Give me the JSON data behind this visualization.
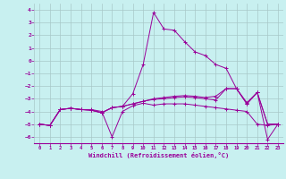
{
  "background_color": "#c8f0f0",
  "grid_color": "#a8c8c8",
  "line_color": "#990099",
  "xlabel": "Windchill (Refroidissement éolien,°C)",
  "xlim": [
    -0.5,
    23.5
  ],
  "ylim": [
    -6.5,
    4.5
  ],
  "yticks": [
    -6,
    -5,
    -4,
    -3,
    -2,
    -1,
    0,
    1,
    2,
    3,
    4
  ],
  "xticks": [
    0,
    1,
    2,
    3,
    4,
    5,
    6,
    7,
    8,
    9,
    10,
    11,
    12,
    13,
    14,
    15,
    16,
    17,
    18,
    19,
    20,
    21,
    22,
    23
  ],
  "lines": [
    {
      "x": [
        0,
        1,
        2,
        3,
        4,
        5,
        6,
        7,
        8,
        9,
        10,
        11,
        12,
        13,
        14,
        15,
        16,
        17,
        18,
        19,
        20,
        21,
        22,
        23
      ],
      "y": [
        -5.0,
        -5.1,
        -3.85,
        -3.75,
        -3.85,
        -3.85,
        -4.0,
        -6.0,
        -4.0,
        -3.55,
        -3.35,
        -3.5,
        -3.4,
        -3.4,
        -3.4,
        -3.5,
        -3.6,
        -3.7,
        -3.8,
        -3.9,
        -4.0,
        -5.0,
        -5.1,
        -5.0
      ]
    },
    {
      "x": [
        0,
        1,
        2,
        3,
        4,
        5,
        6,
        7,
        8,
        9,
        10,
        11,
        12,
        13,
        14,
        15,
        16,
        17,
        18,
        19,
        20,
        21,
        22,
        23
      ],
      "y": [
        -5.0,
        -5.1,
        -3.85,
        -3.75,
        -3.85,
        -3.9,
        -4.1,
        -3.7,
        -3.6,
        -2.6,
        -0.3,
        3.8,
        2.5,
        2.4,
        1.5,
        0.7,
        0.4,
        -0.3,
        -0.6,
        -2.2,
        -3.3,
        -2.5,
        -6.2,
        -5.0
      ]
    },
    {
      "x": [
        0,
        1,
        2,
        3,
        4,
        5,
        6,
        7,
        8,
        9,
        10,
        11,
        12,
        13,
        14,
        15,
        16,
        17,
        18,
        19,
        20,
        21,
        22,
        23
      ],
      "y": [
        -5.0,
        -5.1,
        -3.85,
        -3.75,
        -3.85,
        -3.9,
        -4.1,
        -3.7,
        -3.6,
        -3.4,
        -3.2,
        -3.05,
        -3.0,
        -2.9,
        -2.85,
        -2.9,
        -3.0,
        -3.1,
        -2.2,
        -2.2,
        -3.4,
        -2.5,
        -5.0,
        -5.0
      ]
    },
    {
      "x": [
        0,
        1,
        2,
        3,
        4,
        5,
        6,
        7,
        8,
        9,
        10,
        11,
        12,
        13,
        14,
        15,
        16,
        17,
        18,
        19,
        20,
        21,
        22,
        23
      ],
      "y": [
        -5.0,
        -5.1,
        -3.85,
        -3.75,
        -3.85,
        -3.9,
        -4.1,
        -3.7,
        -3.6,
        -3.4,
        -3.2,
        -3.0,
        -2.9,
        -2.8,
        -2.75,
        -2.8,
        -2.9,
        -2.8,
        -2.2,
        -2.2,
        -3.4,
        -2.5,
        -5.0,
        -5.0
      ]
    }
  ]
}
